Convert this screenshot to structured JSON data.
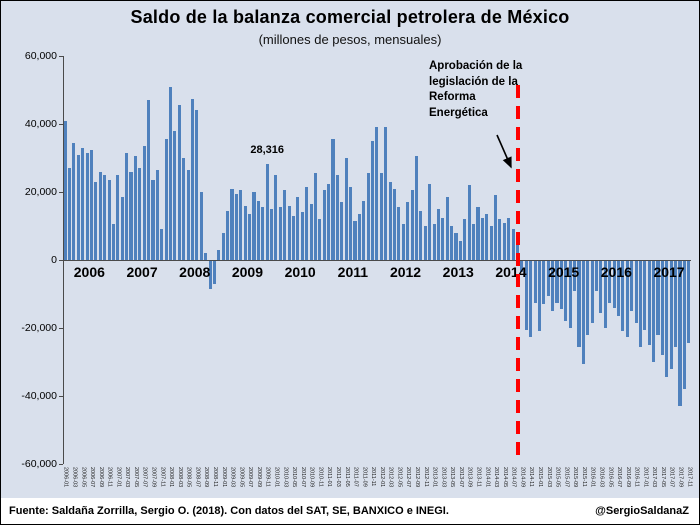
{
  "title": "Saldo de la balanza comercial petrolera de México",
  "subtitle": "(millones de pesos, mensuales)",
  "annotation": {
    "text": "Aprobación  de la legislación de la Reforma Energética",
    "peak_label": "28,316"
  },
  "footer": {
    "source": "Fuente: Saldaña Zorrilla, Sergio O. (2018). Con datos del SAT, SE, BANXICO e INEGI.",
    "handle": "@SergioSaldanaZ"
  },
  "colors": {
    "bar": "#4f81bd",
    "background": "#d9e0ec",
    "event_line": "#ff0000"
  },
  "chart_data": {
    "type": "bar",
    "title": "Saldo de la balanza comercial petrolera de México",
    "subtitle": "(millones de pesos, mensuales)",
    "ylabel": "millones de pesos",
    "ylim": [
      -60000,
      60000
    ],
    "grid": false,
    "months_start": "2006-01",
    "frequency": "monthly",
    "y_ticks": [
      "60,000",
      "40,000",
      "20,000",
      "0",
      "-20,000",
      "-40,000",
      "-60,000"
    ],
    "year_labels": [
      "2006",
      "2007",
      "2008",
      "2009",
      "2010",
      "2011",
      "2012",
      "2013",
      "2014",
      "2015",
      "2016",
      "2017"
    ],
    "x_tick_labels": [
      "2006-01",
      "2006-03",
      "2006-05",
      "2006-07",
      "2006-09",
      "2006-11",
      "2007-01",
      "2007-03",
      "2007-05",
      "2007-07",
      "2007-09",
      "2007-11",
      "2008-01",
      "2008-03",
      "2008-05",
      "2008-07",
      "2008-09",
      "2008-11",
      "2009-01",
      "2009-03",
      "2009-05",
      "2009-07",
      "2009-09",
      "2009-11",
      "2010-01",
      "2010-03",
      "2010-05",
      "2010-07",
      "2010-09",
      "2010-11",
      "2011-01",
      "2011-03",
      "2011-05",
      "2011-07",
      "2011-09",
      "2011-11",
      "2012-01",
      "2012-03",
      "2012-05",
      "2012-07",
      "2012-09",
      "2012-11",
      "2013-01",
      "2013-03",
      "2013-05",
      "2013-07",
      "2013-09",
      "2013-11",
      "2014-01",
      "2014-03",
      "2014-05",
      "2014-07",
      "2014-09",
      "2014-11",
      "2015-01",
      "2015-03",
      "2015-05",
      "2015-07",
      "2015-09",
      "2015-11",
      "2016-01",
      "2016-03",
      "2016-05",
      "2016-07",
      "2016-09",
      "2016-11",
      "2017-01",
      "2017-03",
      "2017-05",
      "2017-07",
      "2017-09",
      "2017-11"
    ],
    "values": [
      41000,
      27000,
      34500,
      31000,
      33000,
      31500,
      32500,
      23000,
      26000,
      25000,
      23500,
      10500,
      25000,
      18500,
      31500,
      26000,
      30500,
      27000,
      33500,
      47000,
      23500,
      26500,
      9000,
      35500,
      51000,
      38000,
      45500,
      30000,
      26500,
      47500,
      44000,
      20000,
      2000,
      -8500,
      -7000,
      3000,
      8000,
      14500,
      21000,
      19500,
      20500,
      16000,
      13500,
      20000,
      17500,
      15500,
      28316,
      15000,
      25000,
      15500,
      20500,
      16000,
      13000,
      18500,
      14000,
      21500,
      16500,
      25500,
      12000,
      20500,
      22500,
      35500,
      25000,
      17000,
      30000,
      21500,
      11500,
      13500,
      17500,
      25500,
      35000,
      39000,
      25500,
      39000,
      23000,
      21000,
      15500,
      10500,
      17000,
      20500,
      30500,
      14500,
      10000,
      22500,
      10500,
      15000,
      12500,
      18500,
      10000,
      8000,
      5500,
      12000,
      22000,
      10500,
      15500,
      12500,
      13500,
      10000,
      19000,
      12000,
      11000,
      12500,
      9000,
      5000,
      -3500,
      -20500,
      -22500,
      -12500,
      -21000,
      -13000,
      -10500,
      -15000,
      -12500,
      -14500,
      -18000,
      -20000,
      -9000,
      -25500,
      -30500,
      -22000,
      -18500,
      -9000,
      -15500,
      -20000,
      -12500,
      -14000,
      -16500,
      -21000,
      -22500,
      -15000,
      -18500,
      -25500,
      -20500,
      -25000,
      -30000,
      -22000,
      -28000,
      -34500,
      -32000,
      -25500,
      -43000,
      -38000,
      -24500
    ],
    "peak_label_index": 46,
    "event_line_index": 103.2,
    "legend": "none"
  }
}
